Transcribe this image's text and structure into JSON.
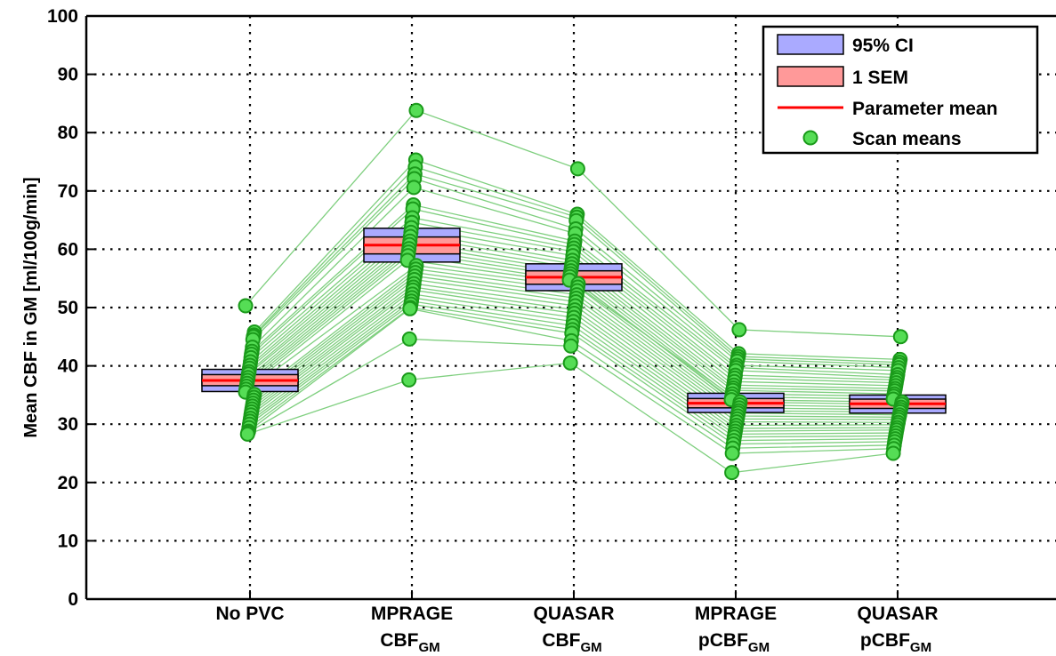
{
  "chart_data": {
    "type": "scatter",
    "ylabel": "Mean CBF in GM [ml/100g/min]",
    "ylim": [
      0,
      100
    ],
    "yticks": [
      "0",
      "10",
      "20",
      "30",
      "40",
      "50",
      "60",
      "70",
      "80",
      "90",
      "100"
    ],
    "grid": true,
    "legend_position": "top-right",
    "categories": [
      {
        "main": "No PVC",
        "line2": "",
        "sub": ""
      },
      {
        "main": "MPRAGE",
        "line2": "CBF",
        "sub": "GM"
      },
      {
        "main": "QUASAR",
        "line2": "CBF",
        "sub": "GM"
      },
      {
        "main": "MPRAGE",
        "line2": "pCBF",
        "sub": "GM"
      },
      {
        "main": "QUASAR",
        "line2": "pCBF",
        "sub": "GM"
      }
    ],
    "legend": [
      {
        "label": "95% CI",
        "kind": "ci-box"
      },
      {
        "label": "1 SEM",
        "kind": "sem-box"
      },
      {
        "label": "Parameter mean",
        "kind": "mean-line"
      },
      {
        "label": "Scan means",
        "kind": "marker"
      }
    ],
    "colors": {
      "ci": "#aaaaff",
      "sem": "#ff9999",
      "mean": "#ff0000",
      "marker_fill": "#55dd55",
      "marker_edge": "#1a9a1a",
      "link": "#7fcf7f"
    },
    "summary": [
      {
        "mean": 37.5,
        "ci": [
          35.6,
          39.4
        ],
        "sem": [
          36.6,
          38.5
        ]
      },
      {
        "mean": 60.7,
        "ci": [
          57.8,
          63.6
        ],
        "sem": [
          59.2,
          62.1
        ]
      },
      {
        "mean": 55.2,
        "ci": [
          52.9,
          57.5
        ],
        "sem": [
          54.0,
          56.3
        ]
      },
      {
        "mean": 33.6,
        "ci": [
          32.0,
          35.3
        ],
        "sem": [
          32.8,
          34.4
        ]
      },
      {
        "mean": 33.5,
        "ci": [
          31.9,
          35.0
        ],
        "sem": [
          32.7,
          34.3
        ]
      }
    ],
    "scans": [
      [
        50.3,
        83.8,
        73.8,
        46.2,
        45.0
      ],
      [
        45.8,
        75.3,
        66.0,
        42.1,
        41.1
      ],
      [
        45.3,
        74.1,
        65.5,
        41.6,
        40.6
      ],
      [
        45.0,
        72.9,
        64.9,
        41.2,
        40.2
      ],
      [
        44.5,
        72.1,
        63.5,
        40.8,
        39.7
      ],
      [
        43.2,
        70.6,
        62.7,
        40.1,
        39.2
      ],
      [
        42.5,
        67.6,
        61.4,
        39.7,
        38.5
      ],
      [
        42.0,
        66.9,
        60.8,
        39.2,
        38.0
      ],
      [
        41.4,
        65.4,
        60.2,
        38.4,
        37.6
      ],
      [
        40.7,
        64.6,
        59.6,
        37.9,
        37.1
      ],
      [
        40.1,
        63.7,
        58.9,
        37.3,
        36.6
      ],
      [
        39.6,
        62.9,
        58.1,
        36.7,
        36.1
      ],
      [
        39.0,
        62.2,
        57.5,
        36.2,
        35.7
      ],
      [
        38.6,
        61.4,
        56.9,
        35.8,
        35.2
      ],
      [
        38.0,
        60.8,
        56.3,
        35.2,
        34.8
      ],
      [
        37.5,
        60.1,
        55.8,
        34.7,
        34.3
      ],
      [
        37.0,
        59.5,
        55.3,
        34.2,
        33.8
      ],
      [
        36.5,
        58.9,
        54.7,
        33.8,
        33.4
      ],
      [
        36.0,
        58.1,
        54.1,
        33.3,
        32.9
      ],
      [
        35.5,
        57.2,
        53.5,
        32.8,
        32.5
      ],
      [
        35.1,
        56.6,
        52.9,
        32.3,
        32.1
      ],
      [
        34.6,
        56.0,
        52.2,
        31.9,
        31.6
      ],
      [
        34.1,
        55.4,
        51.6,
        31.4,
        31.2
      ],
      [
        33.6,
        54.8,
        51.0,
        30.9,
        30.8
      ],
      [
        33.1,
        54.1,
        50.3,
        30.4,
        30.3
      ],
      [
        32.6,
        53.5,
        49.6,
        29.8,
        29.9
      ],
      [
        32.1,
        53.0,
        49.0,
        29.3,
        29.4
      ],
      [
        31.6,
        52.3,
        48.3,
        28.8,
        29.0
      ],
      [
        31.0,
        51.7,
        47.6,
        28.3,
        28.5
      ],
      [
        30.5,
        51.1,
        46.9,
        27.8,
        28.0
      ],
      [
        30.0,
        50.6,
        46.2,
        27.2,
        27.5
      ],
      [
        29.4,
        50.0,
        45.6,
        26.6,
        27.0
      ],
      [
        28.8,
        49.8,
        44.3,
        25.9,
        26.4
      ],
      [
        28.6,
        44.6,
        43.4,
        25.0,
        25.8
      ],
      [
        28.3,
        37.6,
        40.5,
        21.7,
        25.0
      ]
    ]
  }
}
